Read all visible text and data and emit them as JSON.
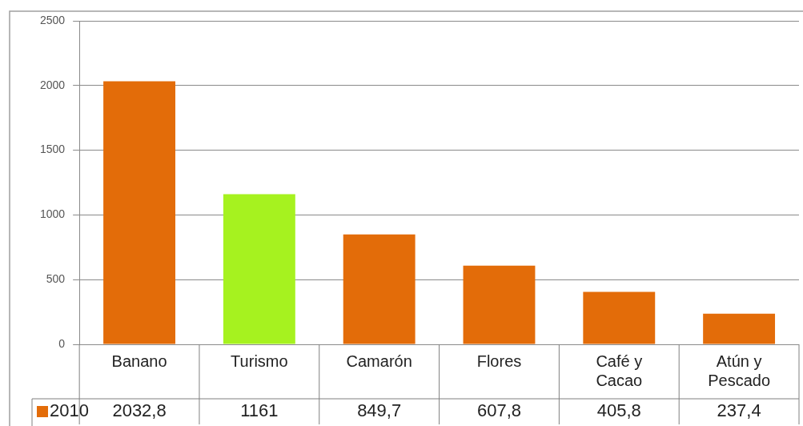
{
  "chart_data": {
    "type": "bar",
    "categories": [
      "Banano",
      "Turismo",
      "Camarón",
      "Flores",
      "Café y Cacao",
      "Atún y Pescado"
    ],
    "series": [
      {
        "name": "2010",
        "color": "#e36c09",
        "colors": [
          "#e36c09",
          "#a6f21f",
          "#e36c09",
          "#e36c09",
          "#e36c09",
          "#e36c09"
        ],
        "values": [
          2032.8,
          1161,
          849.7,
          607.8,
          405.8,
          237.4
        ],
        "value_labels": [
          "2032,8",
          "1161",
          "849,7",
          "607,8",
          "405,8",
          "237,4"
        ]
      }
    ],
    "ylim": [
      0,
      2500
    ],
    "yticks": [
      0,
      500,
      1000,
      1500,
      2000,
      2500
    ],
    "grid": "y",
    "legend": "bottom left"
  }
}
